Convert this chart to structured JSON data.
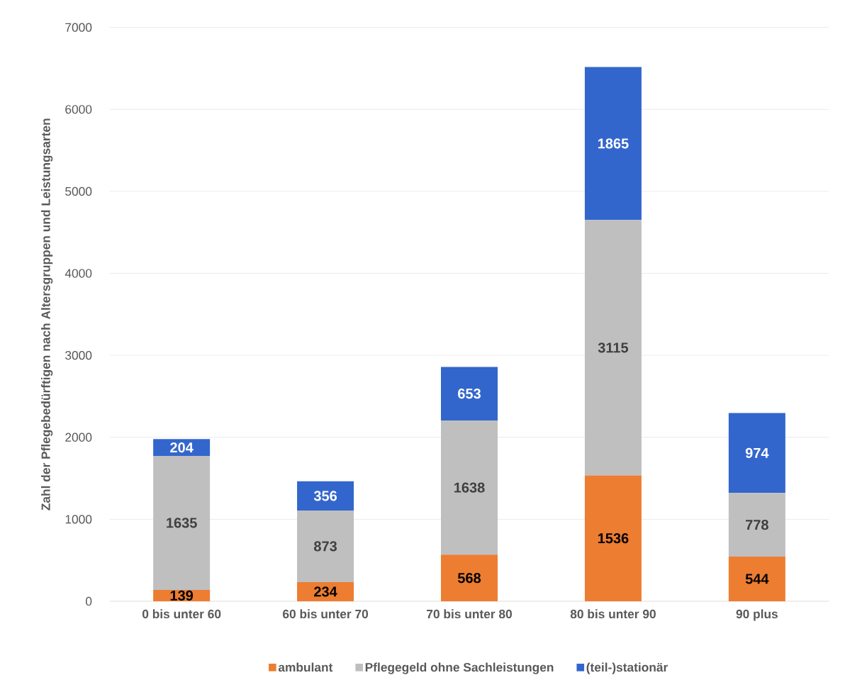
{
  "chart_data": {
    "type": "bar",
    "stacked": true,
    "ylabel": "Zahl der Pflegebedürftigen nach Altersgruppen und Leistungsarten",
    "categories": [
      "0 bis unter 60",
      "60 bis unter 70",
      "70 bis unter 80",
      "80 bis unter 90",
      "90 plus"
    ],
    "series": [
      {
        "name": "ambulant",
        "color": "#ed7d31",
        "values": [
          139,
          234,
          568,
          1536,
          544
        ]
      },
      {
        "name": "Pflegegeld ohne Sachleistungen",
        "color": "#bfbfbf",
        "values": [
          1635,
          873,
          1638,
          3115,
          778
        ]
      },
      {
        "name": "(teil-)stationär",
        "color": "#3366cc",
        "values": [
          204,
          356,
          653,
          1865,
          974
        ]
      }
    ],
    "ylim": [
      0,
      7000
    ],
    "yticks": [
      0,
      1000,
      2000,
      3000,
      4000,
      5000,
      6000,
      7000
    ],
    "grid": "y",
    "legend": "bottom",
    "data_labels": true
  }
}
